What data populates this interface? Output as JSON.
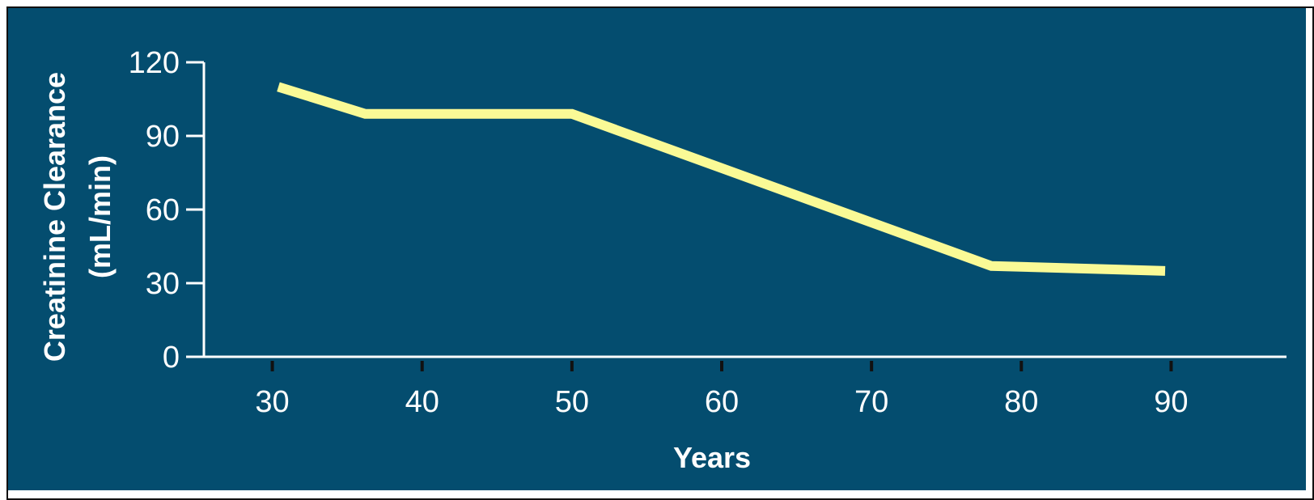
{
  "colors": {
    "background": "#044D6F",
    "axis": "#ffffff",
    "line": "#FAFA96",
    "text": "#ffffff"
  },
  "chart_data": {
    "type": "line",
    "title": "",
    "xlabel": "Years",
    "ylabel_line1": "Creatinine Clearance",
    "ylabel_line2": "(mL/min)",
    "xlim": [
      25,
      95
    ],
    "ylim": [
      0,
      120
    ],
    "x_ticks": [
      30,
      40,
      50,
      60,
      70,
      80,
      90
    ],
    "x_tick_labels": [
      "30",
      "40",
      "50",
      "60",
      "70",
      "80",
      "90"
    ],
    "y_ticks": [
      0,
      30,
      60,
      90,
      120
    ],
    "y_tick_labels": [
      "0",
      "30",
      "60",
      "90",
      "120"
    ],
    "grid": false,
    "legend": "none",
    "series": [
      {
        "x": [
          30.4,
          36.2,
          50,
          78,
          89.6
        ],
        "y": [
          110,
          99,
          99,
          37,
          35
        ]
      }
    ]
  }
}
